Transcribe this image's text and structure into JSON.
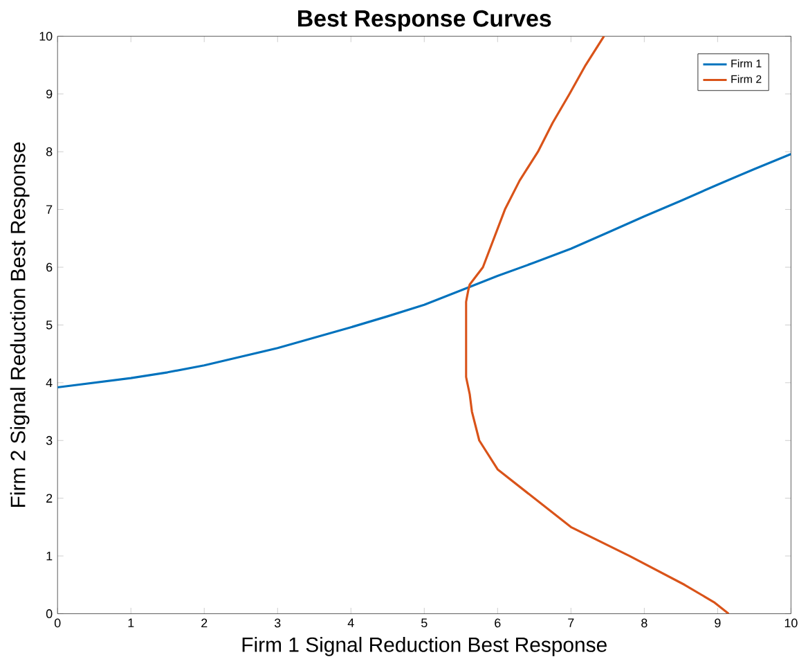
{
  "chart_data": {
    "type": "line",
    "title": "Best Response Curves",
    "xlabel": "Firm 1 Signal Reduction Best Response",
    "ylabel": "Firm 2 Signal Reduction Best Response",
    "xlim": [
      0,
      10
    ],
    "ylim": [
      0,
      10
    ],
    "xticks": [
      0,
      1,
      2,
      3,
      4,
      5,
      6,
      7,
      8,
      9,
      10
    ],
    "yticks": [
      0,
      1,
      2,
      3,
      4,
      5,
      6,
      7,
      8,
      9,
      10
    ],
    "grid": false,
    "legend": "top right",
    "line_style": "solid",
    "series": [
      {
        "name": "Firm 1",
        "color": "#0072bd",
        "x": [
          0,
          0.5,
          1,
          1.5,
          2,
          2.5,
          3,
          3.5,
          4,
          4.5,
          5,
          5.6,
          6,
          6.5,
          7,
          7.5,
          8,
          8.5,
          9,
          9.5,
          10
        ],
        "values": [
          3.92,
          4.0,
          4.08,
          4.18,
          4.3,
          4.45,
          4.6,
          4.78,
          4.96,
          5.15,
          5.35,
          5.65,
          5.85,
          6.08,
          6.32,
          6.6,
          6.88,
          7.15,
          7.43,
          7.7,
          7.96
        ]
      },
      {
        "name": "Firm 2",
        "color": "#d95319",
        "x": [
          9.15,
          8.95,
          8.55,
          7.8,
          7.0,
          6.5,
          6.0,
          5.75,
          5.65,
          5.62,
          5.57,
          5.57,
          5.6,
          5.62,
          5.8,
          5.95,
          6.1,
          6.3,
          6.55,
          6.75,
          6.98,
          7.2,
          7.45
        ],
        "values": [
          0,
          0.2,
          0.5,
          1,
          1.5,
          2,
          2.5,
          3,
          3.5,
          3.8,
          4.1,
          5.4,
          5.6,
          5.7,
          6,
          6.5,
          7,
          7.5,
          8,
          8.5,
          9,
          9.5,
          10
        ]
      }
    ]
  }
}
